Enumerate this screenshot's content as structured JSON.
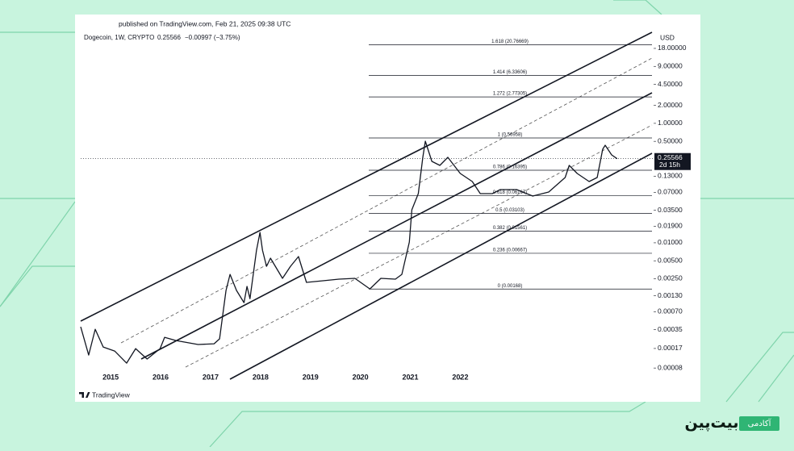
{
  "chart_data": {
    "type": "line",
    "published": "published on TradingView.com, Feb 21, 2025 09:38 UTC",
    "title": "Dogecoin, 1W, CRYPTO",
    "last_price": 0.25566,
    "change": "−0.00997 (−3.75%)",
    "currency": "USD",
    "countdown": "2d 15h",
    "brand": "TradingView",
    "log_scale": true,
    "color": "#131722",
    "x": [
      2014.4,
      2014.56,
      2014.69,
      2014.85,
      2015.08,
      2015.32,
      2015.5,
      2015.73,
      2015.99,
      2016.08,
      2016.31,
      2016.75,
      2017.07,
      2017.18,
      2017.31,
      2017.39,
      2017.52,
      2017.67,
      2017.73,
      2017.79,
      2017.92,
      2017.99,
      2018.04,
      2018.12,
      2018.2,
      2018.44,
      2018.6,
      2018.76,
      2018.92,
      2019.25,
      2019.57,
      2019.89,
      2020.19,
      2020.41,
      2020.7,
      2020.83,
      2020.98,
      2021.03,
      2021.16,
      2021.25,
      2021.3,
      2021.43,
      2021.59,
      2021.75,
      2022.0,
      2022.24,
      2022.4,
      2022.64,
      2022.8,
      2023.13,
      2023.45,
      2023.77,
      2024.1,
      2024.18,
      2024.34,
      2024.58,
      2024.74,
      2024.85,
      2024.9,
      2025.03,
      2025.14
    ],
    "values": [
      0.000392,
      0.000132,
      0.000357,
      0.00018,
      0.000154,
      9.66e-05,
      0.000169,
      0.000113,
      0.000169,
      0.000261,
      0.000231,
      0.000198,
      0.000204,
      0.000246,
      0.00159,
      0.00296,
      0.00159,
      0.000997,
      0.00186,
      0.00116,
      0.00753,
      0.0149,
      0.00753,
      0.00404,
      0.00552,
      0.00254,
      0.00404,
      0.00588,
      0.00217,
      0.00231,
      0.00246,
      0.00254,
      0.00169,
      0.00254,
      0.00246,
      0.00296,
      0.0103,
      0.0357,
      0.0665,
      0.27,
      0.502,
      0.231,
      0.198,
      0.27,
      0.145,
      0.106,
      0.0665,
      0.0665,
      0.0778,
      0.0778,
      0.0606,
      0.0708,
      0.124,
      0.198,
      0.145,
      0.106,
      0.124,
      0.368,
      0.43,
      0.296,
      0.25566
    ],
    "xlim": [
      2014.4,
      2025.87
    ],
    "xticks": [
      2015,
      2016,
      2017,
      2018,
      2019,
      2020,
      2021,
      2022
    ],
    "ylim": [
      5.2e-05,
      33.5
    ],
    "yticks": [
      {
        "value": 18,
        "label": "18.00000"
      },
      {
        "value": 9,
        "label": "9.00000"
      },
      {
        "value": 4.5,
        "label": "4.50000"
      },
      {
        "value": 2,
        "label": "2.00000"
      },
      {
        "value": 1,
        "label": "1.00000"
      },
      {
        "value": 0.5,
        "label": "0.50000"
      },
      {
        "value": 0.13,
        "label": "0.13000"
      },
      {
        "value": 0.07,
        "label": "0.07000"
      },
      {
        "value": 0.035,
        "label": "0.03500"
      },
      {
        "value": 0.019,
        "label": "0.01900"
      },
      {
        "value": 0.01,
        "label": "0.01000"
      },
      {
        "value": 0.005,
        "label": "0.00500"
      },
      {
        "value": 0.0025,
        "label": "0.00250"
      },
      {
        "value": 0.0013,
        "label": "0.00130"
      },
      {
        "value": 0.0007,
        "label": "0.00070"
      },
      {
        "value": 0.00035,
        "label": "0.00035"
      },
      {
        "value": 0.00017,
        "label": "0.00017"
      },
      {
        "value": 8e-05,
        "label": "0.00008"
      }
    ],
    "fib_levels": [
      {
        "value": 20.76669,
        "label": "1.618 (20.76669)"
      },
      {
        "value": 6.33606,
        "label": "1.414 (6.33606)"
      },
      {
        "value": 2.77305,
        "label": "1.272 (2.77305)"
      },
      {
        "value": 0.56958,
        "label": "1 (0.56958)"
      },
      {
        "value": 0.16395,
        "label": "0.786 (0.16395)"
      },
      {
        "value": 0.06167,
        "label": "0.618 (0.06167)"
      },
      {
        "value": 0.03103,
        "label": "0.5 (0.03103)"
      },
      {
        "value": 0.01561,
        "label": "0.382 (0.01561)"
      },
      {
        "value": 0.00667,
        "label": "0.236 (0.00667)"
      },
      {
        "value": 0.00168,
        "label": "0 (0.00168)"
      }
    ]
  },
  "logo": {
    "academy": "آکادمی",
    "name": "بیت‌پین"
  }
}
